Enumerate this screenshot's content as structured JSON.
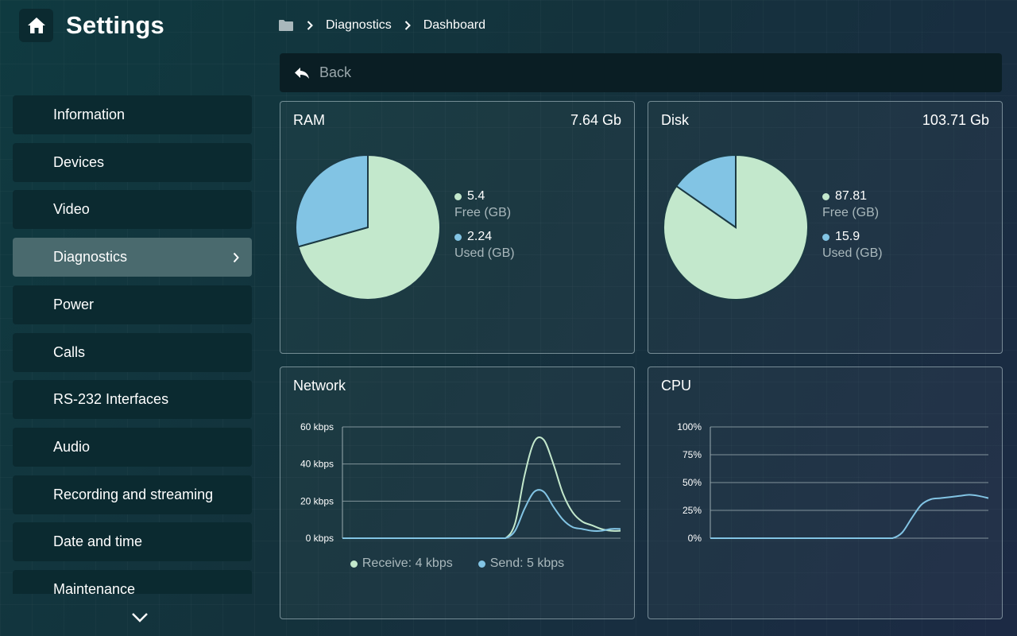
{
  "header": {
    "title": "Settings",
    "home_icon": "home-icon"
  },
  "breadcrumb": {
    "root_icon": "folder-icon",
    "items": [
      "Diagnostics",
      "Dashboard"
    ]
  },
  "sidebar": {
    "items": [
      {
        "label": "Information"
      },
      {
        "label": "Devices"
      },
      {
        "label": "Video"
      },
      {
        "label": "Diagnostics",
        "active": true
      },
      {
        "label": "Power"
      },
      {
        "label": "Calls"
      },
      {
        "label": "RS-232 Interfaces"
      },
      {
        "label": "Audio"
      },
      {
        "label": "Recording and streaming"
      },
      {
        "label": "Date and time"
      },
      {
        "label": "Maintenance"
      }
    ]
  },
  "back": {
    "label": "Back"
  },
  "colors": {
    "free": "#c3e8cc",
    "used": "#82c4e4",
    "receive": "#c3e8cc",
    "send": "#82c4e4"
  },
  "ram": {
    "title": "RAM",
    "total": "7.64 Gb",
    "free_value": "5.4",
    "free_label": "Free (GB)",
    "used_value": "2.24",
    "used_label": "Used (GB)"
  },
  "disk": {
    "title": "Disk",
    "total": "103.71 Gb",
    "free_value": "87.81",
    "free_label": "Free (GB)",
    "used_value": "15.9",
    "used_label": "Used (GB)"
  },
  "network": {
    "title": "Network",
    "receive_legend": "Receive: 4 kbps",
    "send_legend": "Send: 5 kbps"
  },
  "cpu": {
    "title": "CPU"
  },
  "chart_data": [
    {
      "type": "pie",
      "title": "RAM",
      "labels": [
        "Free (GB)",
        "Used (GB)"
      ],
      "values": [
        5.4,
        2.24
      ]
    },
    {
      "type": "pie",
      "title": "Disk",
      "labels": [
        "Free (GB)",
        "Used (GB)"
      ],
      "values": [
        87.81,
        15.9
      ]
    },
    {
      "type": "line",
      "title": "Network",
      "yticks": [
        "0 kbps",
        "20 kbps",
        "40 kbps",
        "60 kbps"
      ],
      "ylim": [
        0,
        60
      ],
      "x": [
        0,
        1,
        2,
        3,
        4,
        5,
        6,
        7,
        8,
        9,
        10,
        11,
        12,
        13,
        14,
        15,
        16,
        17,
        18,
        19,
        20,
        21,
        22,
        23,
        24,
        25,
        26,
        27,
        28,
        29
      ],
      "series": [
        {
          "name": "Receive: 4 kbps",
          "values": [
            0,
            0,
            0,
            0,
            0,
            0,
            0,
            0,
            0,
            0,
            0,
            0,
            0,
            0,
            0,
            0,
            0,
            0,
            8,
            34,
            52,
            53,
            40,
            24,
            14,
            9,
            7,
            5,
            4,
            4
          ]
        },
        {
          "name": "Send: 5 kbps",
          "values": [
            0,
            0,
            0,
            0,
            0,
            0,
            0,
            0,
            0,
            0,
            0,
            0,
            0,
            0,
            0,
            0,
            0,
            0,
            4,
            16,
            25,
            25,
            17,
            10,
            6,
            5,
            4,
            4,
            5,
            5
          ]
        }
      ]
    },
    {
      "type": "line",
      "title": "CPU",
      "yticks": [
        "0%",
        "25%",
        "50%",
        "75%",
        "100%"
      ],
      "ylim": [
        0,
        100
      ],
      "x": [
        0,
        1,
        2,
        3,
        4,
        5,
        6,
        7,
        8,
        9,
        10,
        11,
        12,
        13,
        14,
        15,
        16,
        17,
        18,
        19,
        20,
        21,
        22,
        23,
        24,
        25,
        26,
        27,
        28,
        29
      ],
      "series": [
        {
          "values": [
            0,
            0,
            0,
            0,
            0,
            0,
            0,
            0,
            0,
            0,
            0,
            0,
            0,
            0,
            0,
            0,
            0,
            0,
            0,
            0,
            5,
            18,
            30,
            35,
            36,
            37,
            38,
            39,
            38,
            36
          ]
        }
      ]
    }
  ]
}
